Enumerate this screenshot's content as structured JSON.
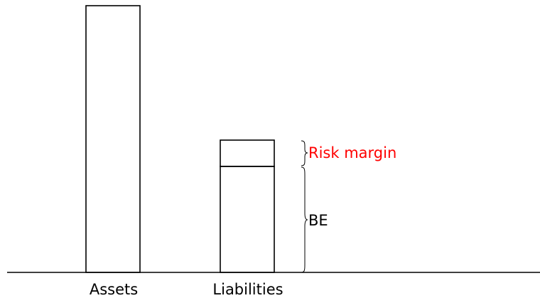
{
  "diagram": {
    "labels": {
      "assets": "Assets",
      "liabilities": "Liabilities",
      "risk_margin": "Risk margin",
      "best_estimate": "BE"
    },
    "colors": {
      "stroke": "#000000",
      "risk_margin_text": "#ff0000",
      "text": "#000000",
      "background": "#ffffff"
    }
  }
}
